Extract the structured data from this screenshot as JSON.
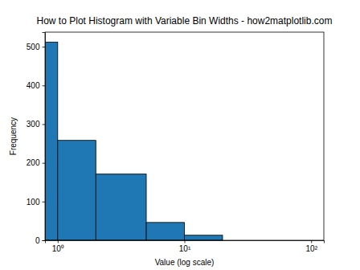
{
  "chart_data": {
    "type": "histogram",
    "title": "How to Plot Histogram with Variable Bin Widths - how2matplotlib.com",
    "x_label": "Value (log scale)",
    "y_label": "Frequency",
    "bins": [
      0,
      1,
      2,
      5,
      10,
      20,
      50,
      100
    ],
    "values": [
      512,
      258,
      171,
      46,
      13,
      0,
      0
    ],
    "color": "#1f77b4",
    "log": "x",
    "xlim": [
      0.794,
      125.9
    ],
    "xticks": [
      {
        "value": 1,
        "label": "10⁰"
      },
      {
        "value": 10,
        "label": "10¹"
      },
      {
        "value": 100,
        "label": "10²"
      }
    ],
    "ylim": [
      0,
      537.6
    ],
    "yticks": [
      0,
      100,
      200,
      300,
      400,
      500
    ]
  }
}
